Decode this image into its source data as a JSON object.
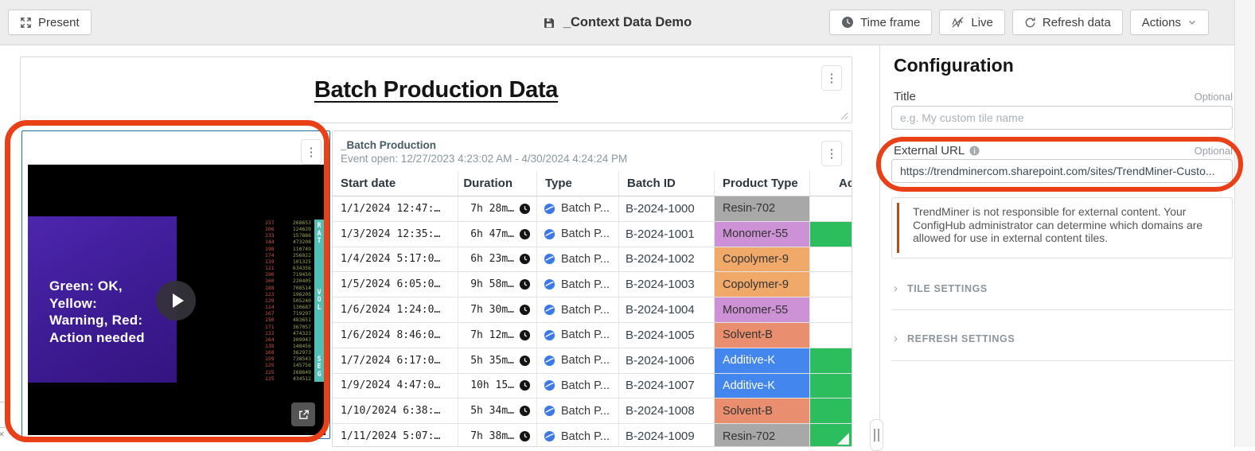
{
  "topbar": {
    "present_label": "Present",
    "doc_title": "_Context Data Demo",
    "time_frame_label": "Time frame",
    "live_label": "Live",
    "refresh_label": "Refresh data",
    "actions_label": "Actions"
  },
  "title_tile": {
    "title": "Batch Production Data"
  },
  "video_tile": {
    "caption_lines": [
      "Green: OK,",
      "Yellow:",
      "Warning, Red:",
      "Action needed"
    ],
    "side_labels": [
      "RAT",
      "VOL",
      "SEG"
    ],
    "numbers": [
      [
        157,
        268653
      ],
      [
        106,
        124629
      ],
      [
        133,
        157886
      ],
      [
        144,
        473208
      ],
      [
        198,
        110749
      ],
      [
        174,
        256022
      ],
      [
        139,
        101325
      ],
      [
        121,
        634356
      ],
      [
        190,
        719450
      ],
      [
        160,
        220405
      ],
      [
        188,
        708514
      ],
      [
        123,
        196205
      ],
      [
        129,
        505240
      ],
      [
        114,
        130687
      ],
      [
        167,
        719297
      ],
      [
        150,
        483651
      ],
      [
        171,
        367057
      ],
      [
        133,
        474323
      ],
      [
        164,
        309947
      ],
      [
        138,
        148456
      ],
      [
        168,
        362973
      ],
      [
        159,
        738543
      ],
      [
        125,
        145756
      ],
      [
        125,
        268649
      ],
      [
        125,
        434512
      ]
    ]
  },
  "table_tile": {
    "title": "_Batch Production",
    "subtitle": "Event open: 12/27/2023 4:23:02 AM - 4/30/2024 4:24:24 PM",
    "columns": [
      "Start date",
      "Duration",
      "Type",
      "Batch ID",
      "Product Type",
      "Actu"
    ],
    "rows": [
      {
        "start": "1/1/2024 12:47:…",
        "duration": "7h 28m…",
        "type": "Batch P...",
        "batch_id": "B-2024-1000",
        "product": "Resin-702",
        "product_color": "gray",
        "actual_green": false
      },
      {
        "start": "1/3/2024 12:35:…",
        "duration": "6h 47m…",
        "type": "Batch P...",
        "batch_id": "B-2024-1001",
        "product": "Monomer-55",
        "product_color": "purple",
        "actual_green": true
      },
      {
        "start": "1/4/2024 5:17:0…",
        "duration": "6h 23m…",
        "type": "Batch P...",
        "batch_id": "B-2024-1002",
        "product": "Copolymer-9",
        "product_color": "orange",
        "actual_green": false
      },
      {
        "start": "1/5/2024 6:05:0…",
        "duration": "9h 58m…",
        "type": "Batch P...",
        "batch_id": "B-2024-1003",
        "product": "Copolymer-9",
        "product_color": "orange",
        "actual_green": false
      },
      {
        "start": "1/6/2024 1:24:0…",
        "duration": "7h 30m…",
        "type": "Batch P...",
        "batch_id": "B-2024-1004",
        "product": "Monomer-55",
        "product_color": "purple",
        "actual_green": false
      },
      {
        "start": "1/6/2024 8:46:0…",
        "duration": "7h 12m…",
        "type": "Batch P...",
        "batch_id": "B-2024-1005",
        "product": "Solvent-B",
        "product_color": "salmon",
        "actual_green": false
      },
      {
        "start": "1/7/2024 6:17:0…",
        "duration": "5h 35m…",
        "type": "Batch P...",
        "batch_id": "B-2024-1006",
        "product": "Additive-K",
        "product_color": "blue",
        "actual_green": true
      },
      {
        "start": "1/9/2024 4:47:0…",
        "duration": "10h 15…",
        "type": "Batch P...",
        "batch_id": "B-2024-1007",
        "product": "Additive-K",
        "product_color": "blue",
        "actual_green": true
      },
      {
        "start": "1/10/2024 6:38:…",
        "duration": "5h 34m…",
        "type": "Batch P...",
        "batch_id": "B-2024-1008",
        "product": "Solvent-B",
        "product_color": "salmon",
        "actual_green": true
      },
      {
        "start": "1/11/2024 5:07:…",
        "duration": "7h 38m…",
        "type": "Batch P...",
        "batch_id": "B-2024-1009",
        "product": "Resin-702",
        "product_color": "gray",
        "actual_green": true
      }
    ]
  },
  "config": {
    "heading": "Configuration",
    "title_label": "Title",
    "title_optional": "Optional",
    "title_placeholder": "e.g. My custom tile name",
    "external_url_label": "External URL",
    "external_url_optional": "Optional",
    "external_url_value": "https://trendminercom.sharepoint.com/sites/TrendMiner-Custo...",
    "notice_text": "TrendMiner is not responsible for external content. Your ConfigHub administrator can determine which domains are allowed for use in external content tiles.",
    "sections": [
      "TILE SETTINGS",
      "REFRESH SETTINGS"
    ]
  },
  "icons": {
    "kebab": "⋮",
    "chevron_right": "›",
    "close": "×"
  },
  "colors": {
    "annotation": "#e94017",
    "selected_tile_border": "#1f6f9f",
    "actual_green": "#2cbd5f",
    "products": {
      "gray": "#a8a8a8",
      "purple": "#cd92d5",
      "orange": "#f0a969",
      "salmon": "#e98e6e",
      "blue": "#4386ee"
    },
    "product_text_light": [
      "blue"
    ]
  }
}
